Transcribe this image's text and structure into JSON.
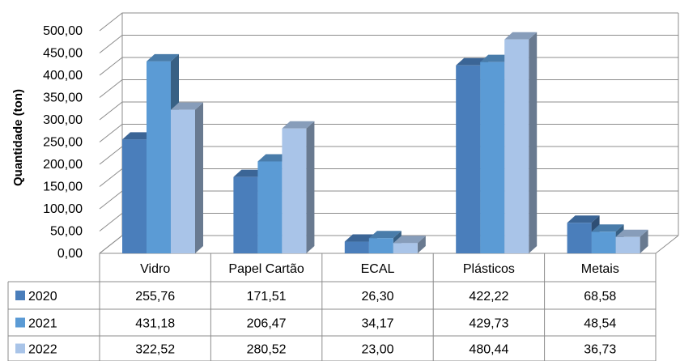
{
  "chart_data": {
    "type": "bar",
    "title": "",
    "xlabel": "",
    "ylabel": "Quantidade (ton)",
    "ylim": [
      0,
      500
    ],
    "ytick_labels": [
      "0,00",
      "50,00",
      "100,00",
      "150,00",
      "200,00",
      "250,00",
      "300,00",
      "350,00",
      "400,00",
      "450,00",
      "500,00"
    ],
    "categories": [
      "Vidro",
      "Papel Cartão",
      "ECAL",
      "Plásticos",
      "Metais"
    ],
    "series": [
      {
        "name": "2020",
        "values": [
          255.76,
          171.51,
          26.3,
          422.22,
          68.58
        ],
        "labels": [
          "255,76",
          "171,51",
          "26,30",
          "422,22",
          "68,58"
        ]
      },
      {
        "name": "2021",
        "values": [
          431.18,
          206.47,
          34.17,
          429.73,
          48.54
        ],
        "labels": [
          "431,18",
          "206,47",
          "34,17",
          "429,73",
          "48,54"
        ]
      },
      {
        "name": "2022",
        "values": [
          322.52,
          280.52,
          23.0,
          480.44,
          36.73
        ],
        "labels": [
          "322,52",
          "280,52",
          "23,00",
          "480,44",
          "36,73"
        ]
      }
    ],
    "grid": true,
    "three_d": true,
    "legend": "data-table-left"
  },
  "colors": {
    "series": [
      "#4a7ebb",
      "#5b9bd5",
      "#a9c4e8"
    ],
    "grid": "#8c8c8c",
    "table_border": "#8c8c8c"
  }
}
